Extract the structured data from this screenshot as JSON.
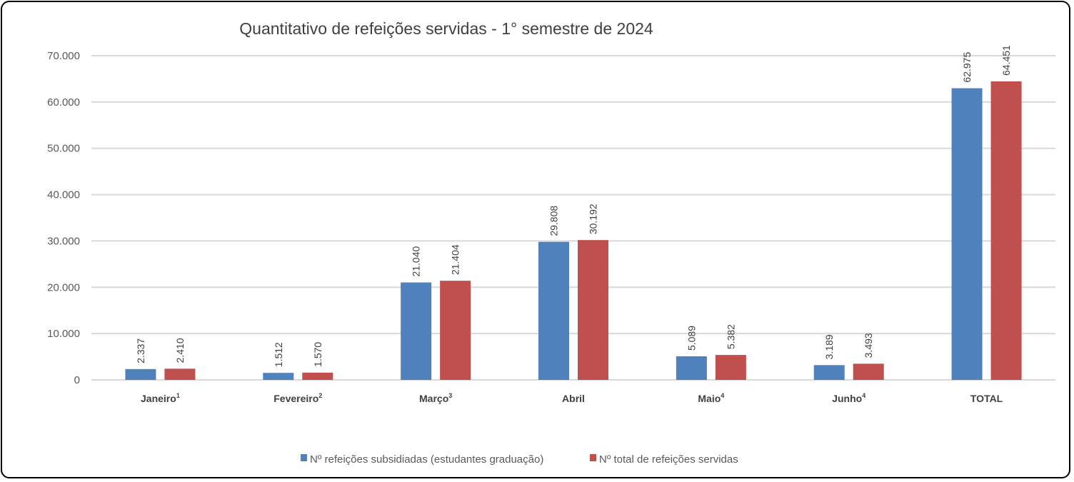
{
  "chart_data": {
    "type": "bar",
    "title": "Quantitativo de refeições servidas - 1° semestre de 2024",
    "categories": [
      "Janeiro",
      "Fevereiro",
      "Março",
      "Abril",
      "Maio",
      "Junho",
      "TOTAL"
    ],
    "category_superscripts": [
      "1",
      "2",
      "3",
      "",
      "4",
      "4",
      ""
    ],
    "series": [
      {
        "name": "Nº refeições subsidiadas (estudantes graduação)",
        "color": "#4F81BD",
        "values": [
          2337,
          1512,
          21040,
          29808,
          5089,
          3189,
          62975
        ],
        "labels": [
          "2.337",
          "1.512",
          "21.040",
          "29.808",
          "5.089",
          "3.189",
          "62.975"
        ]
      },
      {
        "name": "Nº total de refeições servidas",
        "color": "#C0504D",
        "values": [
          2410,
          1570,
          21404,
          30192,
          5382,
          3493,
          64451
        ],
        "labels": [
          "2.410",
          "1.570",
          "21.404",
          "30.192",
          "5.382",
          "3.493",
          "64.451"
        ]
      }
    ],
    "ylim": [
      0,
      70000
    ],
    "yticks": [
      0,
      10000,
      20000,
      30000,
      40000,
      50000,
      60000,
      70000
    ],
    "ytick_labels": [
      "0",
      "10.000",
      "20.000",
      "30.000",
      "40.000",
      "50.000",
      "60.000",
      "70.000"
    ],
    "xlabel": "",
    "ylabel": "",
    "grid": true,
    "legend": "bottom"
  }
}
